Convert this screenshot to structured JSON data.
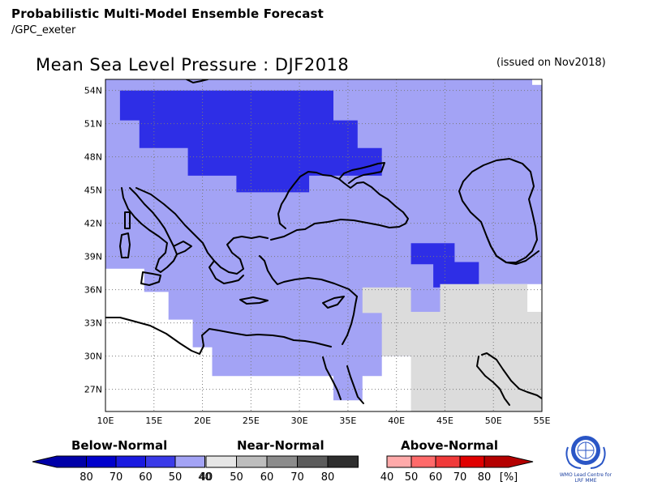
{
  "header": {
    "line1": "Probabilistic Multi-Model Ensemble Forecast",
    "line2": "/GPC_exeter"
  },
  "title": "Mean Sea Level Pressure : DJF2018",
  "issued": "(issued on Nov2018)",
  "map": {
    "lon_range": [
      10,
      55
    ],
    "lat_range": [
      25,
      55
    ],
    "lat_ticks": [
      "54N",
      "51N",
      "48N",
      "45N",
      "42N",
      "39N",
      "36N",
      "33N",
      "30N",
      "27N"
    ],
    "lon_ticks": [
      "10E",
      "15E",
      "20E",
      "25E",
      "30E",
      "35E",
      "40E",
      "45E",
      "50E",
      "55E"
    ],
    "category_colors": {
      "below_50": "#2e2ee6",
      "below_40": "#a3a3f5",
      "near_40": "#dcdcdc",
      "none": "#ffffff"
    },
    "coast_color": "#000000",
    "grid_color": "#7a7a7a"
  },
  "legend": {
    "below": {
      "title": "Below-Normal",
      "labels": [
        "80",
        "70",
        "60",
        "50",
        "40"
      ],
      "colors": [
        "#0000a8",
        "#0000cc",
        "#1a1ae0",
        "#3a3ae8",
        "#a3a3f5"
      ]
    },
    "near": {
      "title": "Near-Normal",
      "labels": [
        "40",
        "50",
        "60",
        "70",
        "80"
      ],
      "colors": [
        "#e6e6e6",
        "#bdbdbd",
        "#8c8c8c",
        "#5c5c5c",
        "#2e2e2e"
      ]
    },
    "above": {
      "title": "Above-Normal",
      "labels": [
        "40",
        "50",
        "60",
        "70",
        "80",
        "[%]"
      ],
      "colors": [
        "#ffaaaa",
        "#ff6a6a",
        "#f03a3a",
        "#e00000",
        "#b40000"
      ]
    }
  },
  "logo": {
    "text_line1": "WMO Lead Centre for",
    "text_line2": "LRF MME"
  }
}
